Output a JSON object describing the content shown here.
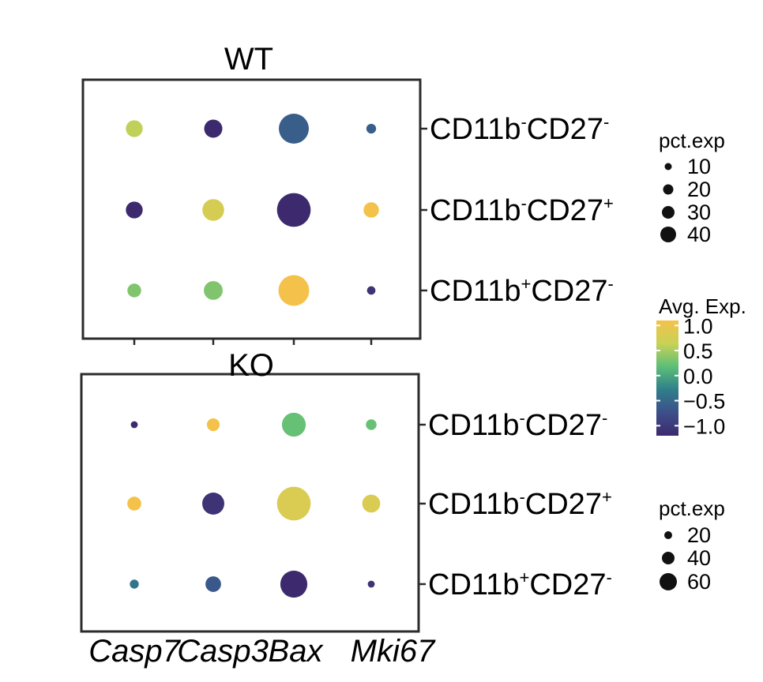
{
  "chart_data": {
    "type": "dot",
    "genes": [
      "Casp7",
      "Casp3",
      "Bax",
      "Mki67"
    ],
    "panels": [
      {
        "title": "WT",
        "rows": [
          {
            "label": {
              "base1": "CD11b",
              "sup1": "-",
              "base2": "CD27",
              "sup2": "-"
            },
            "pct_exp": [
              12,
              14,
              38,
              4
            ],
            "avg_exp": [
              0.55,
              -1.1,
              -0.55,
              -0.55
            ]
          },
          {
            "label": {
              "base1": "CD11b",
              "sup1": "-",
              "base2": "CD27",
              "sup2": "+"
            },
            "pct_exp": [
              12,
              20,
              48,
              10
            ],
            "avg_exp": [
              -1.1,
              0.7,
              -1.1,
              1.0
            ]
          },
          {
            "label": {
              "base1": "CD11b",
              "sup1": "+",
              "base2": "CD27",
              "sup2": "-"
            },
            "pct_exp": [
              8,
              15,
              40,
              3
            ],
            "avg_exp": [
              0.3,
              0.3,
              1.0,
              -1.0
            ]
          }
        ],
        "size_legend": {
          "title": "pct.exp",
          "values": [
            10,
            20,
            30,
            40
          ]
        }
      },
      {
        "title": "KO",
        "rows": [
          {
            "label": {
              "base1": "CD11b",
              "sup1": "-",
              "base2": "CD27",
              "sup2": "-"
            },
            "pct_exp": [
              3,
              10,
              35,
              7
            ],
            "avg_exp": [
              -1.1,
              1.0,
              0.2,
              0.2
            ]
          },
          {
            "label": {
              "base1": "CD11b",
              "sup1": "-",
              "base2": "CD27",
              "sup2": "+"
            },
            "pct_exp": [
              12,
              30,
              70,
              20
            ],
            "avg_exp": [
              1.0,
              -1.0,
              0.75,
              0.75
            ]
          },
          {
            "label": {
              "base1": "CD11b",
              "sup1": "+",
              "base2": "CD27",
              "sup2": "-"
            },
            "pct_exp": [
              5,
              15,
              45,
              3
            ],
            "avg_exp": [
              -0.35,
              -0.6,
              -1.1,
              -1.0
            ]
          }
        ],
        "size_legend": {
          "title": "pct.exp",
          "values": [
            20,
            40,
            60
          ]
        }
      }
    ],
    "color_legend": {
      "title": "Avg. Exp.",
      "range": [
        -1.2,
        1.1
      ],
      "ticks": [
        {
          "value": 1.0,
          "label": "1.0"
        },
        {
          "value": 0.5,
          "label": "0.5"
        },
        {
          "value": 0.0,
          "label": "0.0"
        },
        {
          "value": -0.5,
          "label": "−0.5"
        },
        {
          "value": -1.0,
          "label": "−1.0"
        }
      ]
    },
    "colors": {
      "scale": [
        "#3d2a6e",
        "#3d4f8a",
        "#2f7f8a",
        "#5cbf78",
        "#c8d257",
        "#f4c24a"
      ],
      "dot_outline": "none",
      "frame": "#2b2b2b"
    }
  }
}
